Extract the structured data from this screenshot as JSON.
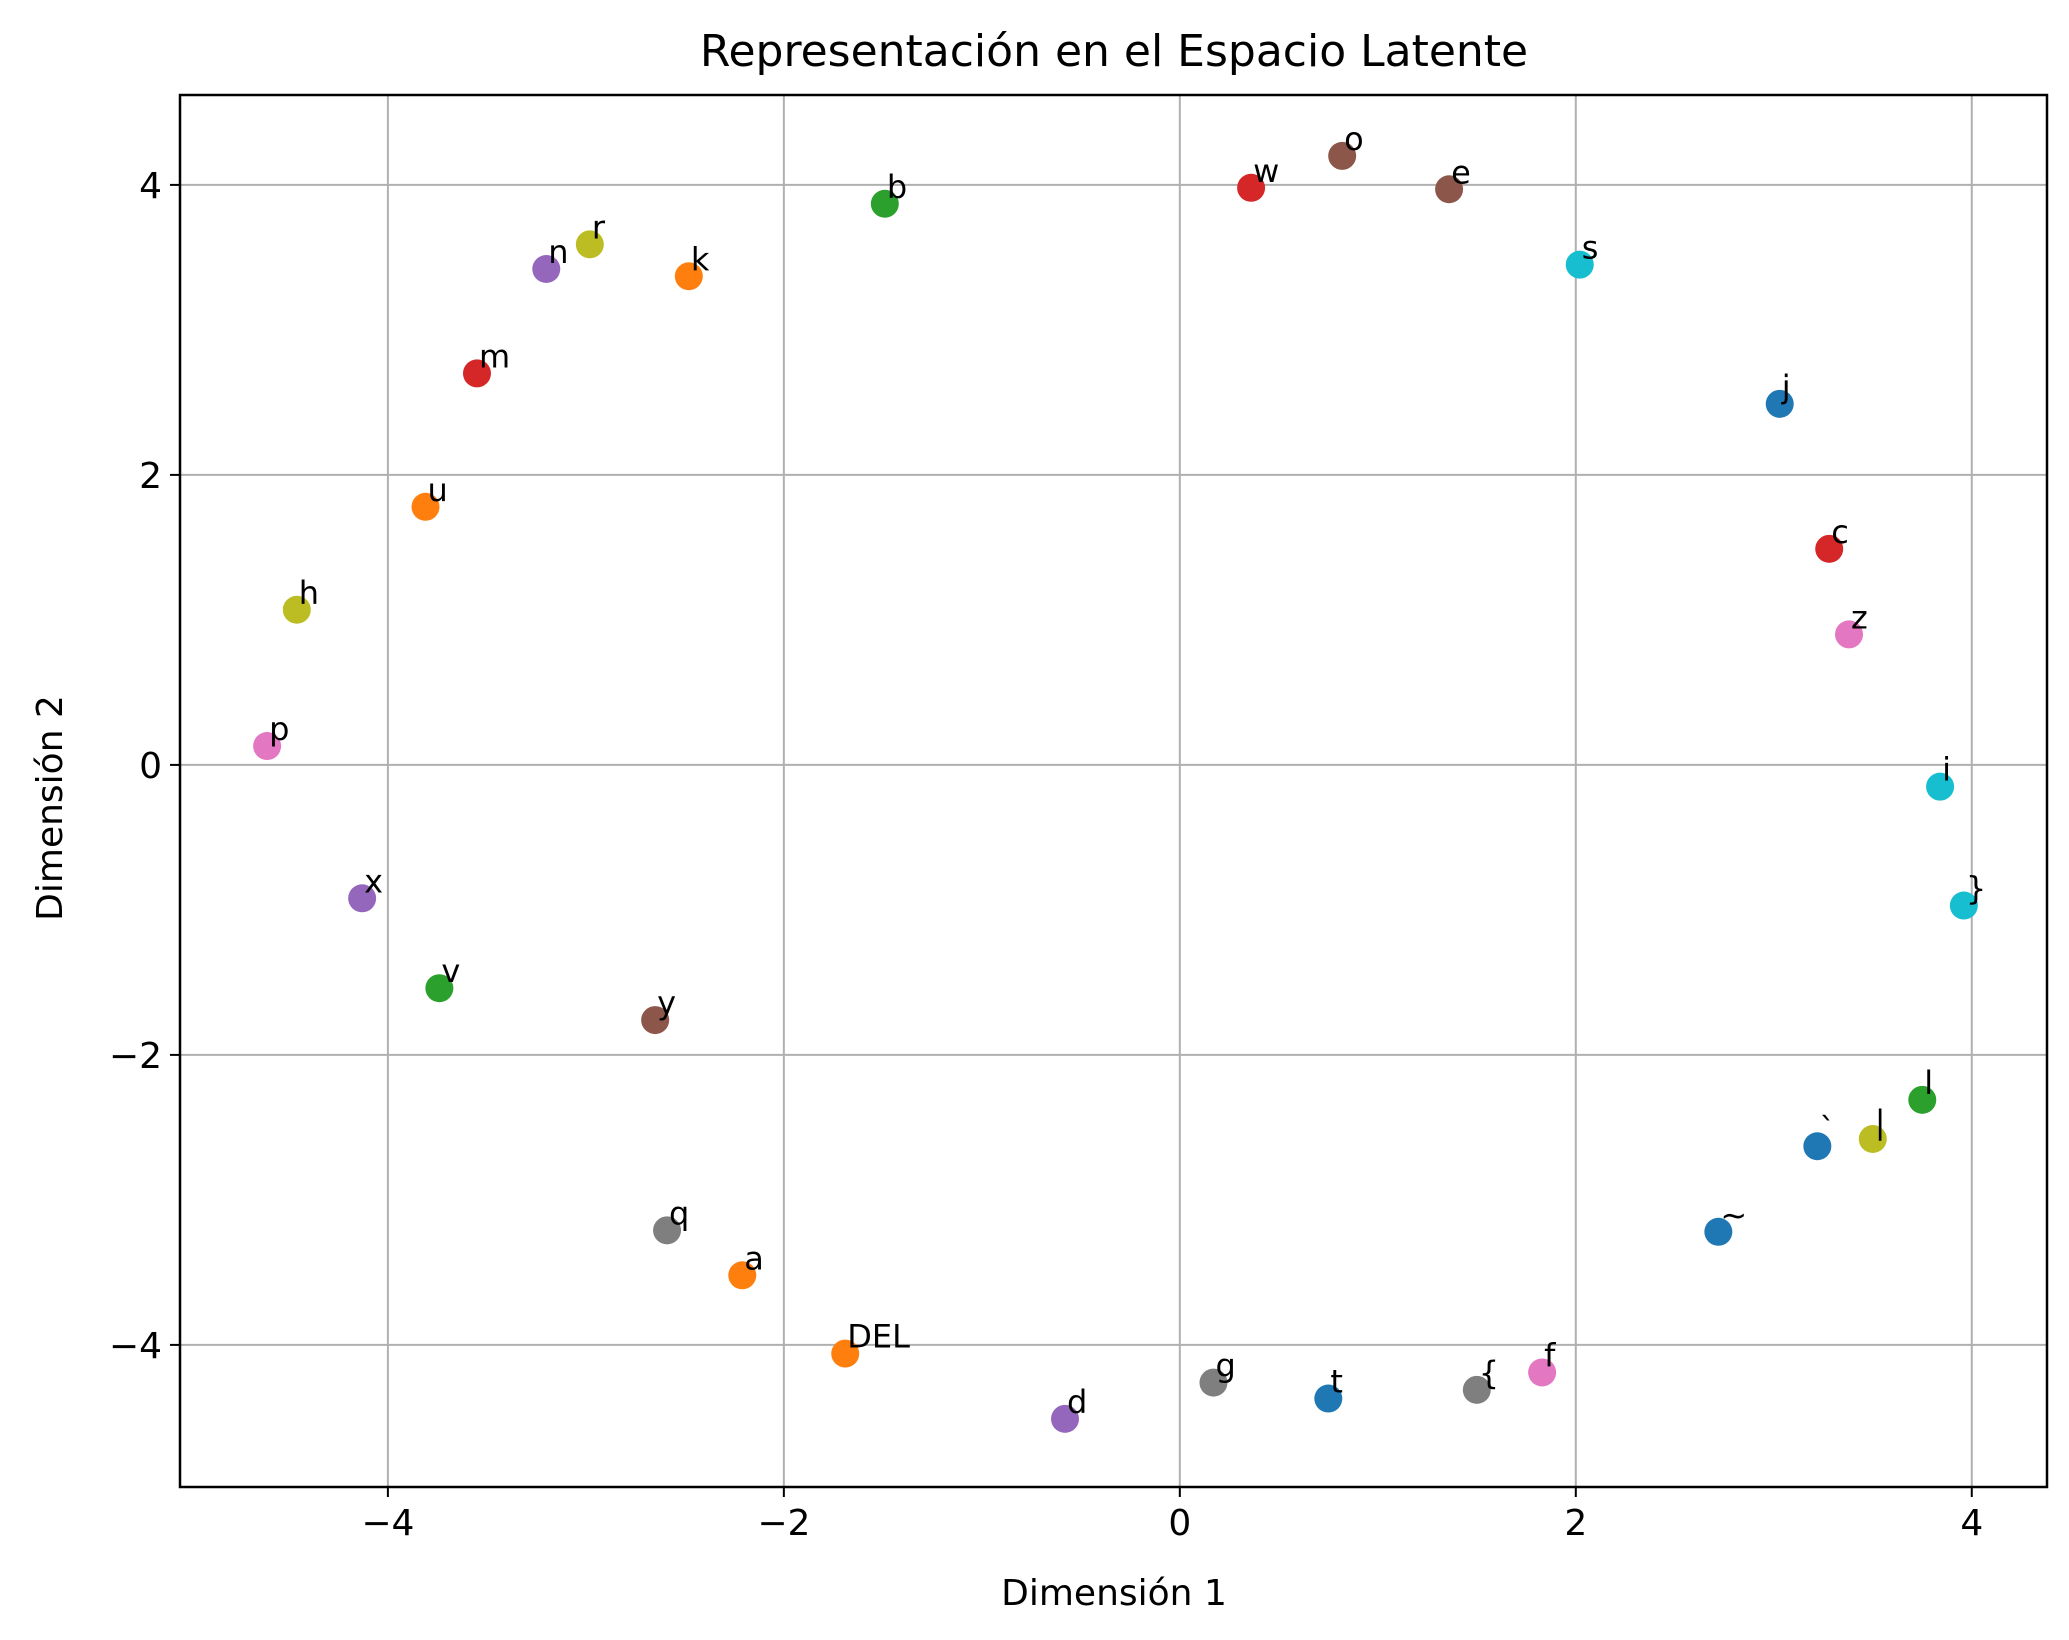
{
  "chart_data": {
    "type": "scatter",
    "title": "Representación en el Espacio Latente",
    "xlabel": "Dimensión 1",
    "ylabel": "Dimensión 2",
    "xlim": [
      -5.05,
      4.38
    ],
    "ylim": [
      -4.98,
      4.62
    ],
    "xticks": [
      -4,
      -2,
      0,
      2,
      4
    ],
    "yticks": [
      -4,
      -2,
      0,
      2,
      4
    ],
    "xtick_labels": [
      "−4",
      "−2",
      "0",
      "2",
      "4"
    ],
    "ytick_labels": [
      "−4",
      "−2",
      "0",
      "2",
      "4"
    ],
    "grid": true,
    "legend": "none",
    "points": [
      {
        "label": "o",
        "x": 0.82,
        "y": 4.2,
        "color": "#8c564b"
      },
      {
        "label": "w",
        "x": 0.36,
        "y": 3.98,
        "color": "#d62728"
      },
      {
        "label": "e",
        "x": 1.36,
        "y": 3.97,
        "color": "#8c564b"
      },
      {
        "label": "b",
        "x": -1.49,
        "y": 3.87,
        "color": "#2ca02c"
      },
      {
        "label": "r",
        "x": -2.98,
        "y": 3.59,
        "color": "#bcbd22"
      },
      {
        "label": "s",
        "x": 2.02,
        "y": 3.45,
        "color": "#17becf"
      },
      {
        "label": "n",
        "x": -3.2,
        "y": 3.42,
        "color": "#9467bd"
      },
      {
        "label": "k",
        "x": -2.48,
        "y": 3.37,
        "color": "#ff7f0e"
      },
      {
        "label": "m",
        "x": -3.55,
        "y": 2.7,
        "color": "#d62728"
      },
      {
        "label": "j",
        "x": 3.03,
        "y": 2.49,
        "color": "#1f77b4"
      },
      {
        "label": "u",
        "x": -3.81,
        "y": 1.78,
        "color": "#ff7f0e"
      },
      {
        "label": "c",
        "x": 3.28,
        "y": 1.49,
        "color": "#d62728"
      },
      {
        "label": "h",
        "x": -4.46,
        "y": 1.07,
        "color": "#bcbd22"
      },
      {
        "label": "z",
        "x": 3.38,
        "y": 0.9,
        "color": "#e377c2"
      },
      {
        "label": "p",
        "x": -4.61,
        "y": 0.13,
        "color": "#e377c2"
      },
      {
        "label": "i",
        "x": 3.84,
        "y": -0.15,
        "color": "#17becf"
      },
      {
        "label": "}",
        "x": 3.96,
        "y": -0.97,
        "color": "#17becf"
      },
      {
        "label": "x",
        "x": -4.13,
        "y": -0.92,
        "color": "#9467bd"
      },
      {
        "label": "v",
        "x": -3.74,
        "y": -1.54,
        "color": "#2ca02c"
      },
      {
        "label": "y",
        "x": -2.65,
        "y": -1.76,
        "color": "#8c564b"
      },
      {
        "label": "l",
        "x": 3.75,
        "y": -2.31,
        "color": "#2ca02c"
      },
      {
        "label": "|",
        "x": 3.5,
        "y": -2.58,
        "color": "#bcbd22"
      },
      {
        "label": "`",
        "x": 3.22,
        "y": -2.63,
        "color": "#1f77b4"
      },
      {
        "label": "~",
        "x": 2.72,
        "y": -3.22,
        "color": "#1f77b4"
      },
      {
        "label": "q",
        "x": -2.59,
        "y": -3.21,
        "color": "#7f7f7f"
      },
      {
        "label": "a",
        "x": -2.21,
        "y": -3.52,
        "color": "#ff7f0e"
      },
      {
        "label": "DEL",
        "x": -1.69,
        "y": -4.06,
        "color": "#ff7f0e"
      },
      {
        "label": "f",
        "x": 1.83,
        "y": -4.19,
        "color": "#e377c2"
      },
      {
        "label": "g",
        "x": 0.17,
        "y": -4.26,
        "color": "#7f7f7f"
      },
      {
        "label": "{",
        "x": 1.5,
        "y": -4.31,
        "color": "#7f7f7f"
      },
      {
        "label": "t",
        "x": 0.75,
        "y": -4.37,
        "color": "#1f77b4"
      },
      {
        "label": "d",
        "x": -0.58,
        "y": -4.51,
        "color": "#9467bd"
      }
    ]
  }
}
